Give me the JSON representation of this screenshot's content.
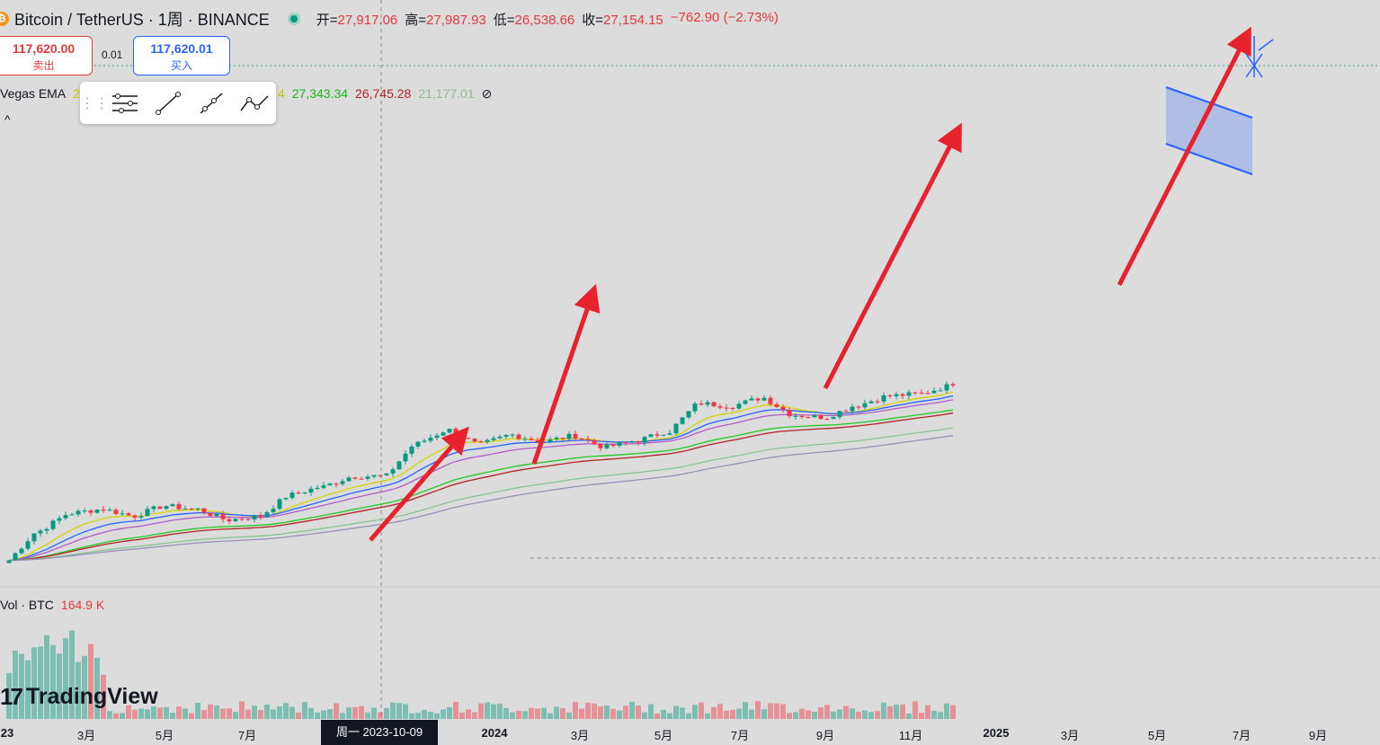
{
  "header": {
    "symbol": "Bitcoin / TetherUS · 1周 · BINANCE",
    "coin_icon": "₿",
    "open_label": "开=",
    "open": "27,917.06",
    "high_label": "高=",
    "high": "27,987.93",
    "low_label": "低=",
    "low": "26,538.66",
    "close_label": "收=",
    "close": "27,154.15",
    "change": "−762.90 (−2.73%)"
  },
  "trade": {
    "sell_price": "117,620.00",
    "sell_label": "卖出",
    "spread": "0.01",
    "buy_price": "117,620.01",
    "buy_label": "买入"
  },
  "indicator": {
    "name": "Vegas EMA",
    "v1": "2",
    "v1b": "4",
    "v2": "27,343.34",
    "v3": "26,745.28",
    "v4": "21,177.01",
    "hide_icon": "⊘",
    "collapse_icon": "^"
  },
  "toolbar": {
    "icons": [
      "grip-icon",
      "settings-lines-icon",
      "trend-line-icon",
      "ray-icon",
      "path-icon"
    ]
  },
  "volume": {
    "label": "Vol · BTC",
    "value": "164.9 K"
  },
  "logo": {
    "text": "TradingView",
    "mark": "17"
  },
  "crosshair": {
    "date_label": "周一 2023-10-09"
  },
  "xaxis": {
    "labels": [
      {
        "text": "23",
        "bold": true
      },
      {
        "text": "3月",
        "bold": false
      },
      {
        "text": "5月",
        "bold": false
      },
      {
        "text": "7月",
        "bold": false
      },
      {
        "text": "2024",
        "bold": true
      },
      {
        "text": "3月",
        "bold": false
      },
      {
        "text": "5月",
        "bold": false
      },
      {
        "text": "7月",
        "bold": false
      },
      {
        "text": "9月",
        "bold": false
      },
      {
        "text": "11月",
        "bold": false
      },
      {
        "text": "2025",
        "bold": true
      },
      {
        "text": "3月",
        "bold": false
      },
      {
        "text": "5月",
        "bold": false
      },
      {
        "text": "7月",
        "bold": false
      },
      {
        "text": "9月",
        "bold": false
      }
    ]
  },
  "colors": {
    "up": "#089981",
    "down": "#f23645",
    "arrow": "#e8222d",
    "ema_fast": "#d4d400",
    "ema_blue": "#2962ff",
    "ema_purple": "#b15cc9",
    "ema_green": "#23c823",
    "ema_red": "#b22222",
    "ema_lightgreen": "#86c48f",
    "ema_gray": "#9b8fb8",
    "channel": "#2962ff"
  },
  "chart_data": {
    "type": "candlestick",
    "xlabel": "",
    "ylabel": "",
    "x": [
      "2023-01",
      "2023-02",
      "2023-03",
      "2023-04",
      "2023-05",
      "2023-06",
      "2023-07",
      "2023-08",
      "2023-09",
      "2023-10",
      "2023-11",
      "2023-12",
      "2024-01",
      "2024-02",
      "2024-03",
      "2024-04",
      "2024-05",
      "2024-06",
      "2024-07",
      "2024-08",
      "2024-09",
      "2024-10",
      "2024-11",
      "2024-12",
      "2025-01",
      "2025-02",
      "2025-03",
      "2025-04",
      "2025-05",
      "2025-06",
      "2025-07"
    ],
    "close_approx": [
      16500,
      23000,
      28000,
      29300,
      27200,
      30400,
      29300,
      26000,
      27000,
      34500,
      37700,
      42300,
      42600,
      61200,
      71300,
      60600,
      67500,
      62700,
      66800,
      59000,
      63300,
      70200,
      96400,
      93500,
      102400,
      84300,
      82500,
      94200,
      104600,
      107100,
      117600
    ],
    "grid": false,
    "legend": "none"
  }
}
